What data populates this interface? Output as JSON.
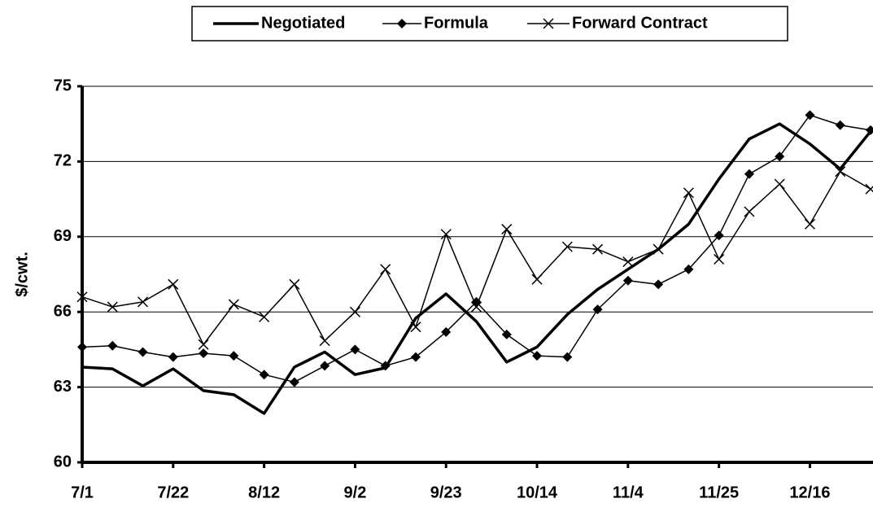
{
  "chart_data": {
    "type": "line",
    "y_label": "$/cwt.",
    "categories": [
      "7/1",
      null,
      null,
      "7/22",
      null,
      null,
      "8/12",
      null,
      null,
      "9/2",
      null,
      null,
      "9/23",
      null,
      null,
      "10/14",
      null,
      null,
      "11/4",
      null,
      null,
      "11/25",
      null,
      null,
      "12/16",
      null,
      null
    ],
    "ylim": [
      60,
      75
    ],
    "yticks": [
      60,
      63,
      66,
      69,
      72,
      75
    ],
    "grid": true,
    "legend": "top",
    "series": [
      {
        "name": "Negotiated",
        "color": "#000000",
        "marker": "none",
        "values": [
          63.8,
          63.73,
          63.05,
          63.73,
          62.86,
          62.7,
          61.95,
          63.8,
          64.4,
          63.5,
          63.77,
          65.75,
          66.72,
          65.62,
          64.0,
          64.6,
          65.9,
          66.9,
          67.7,
          68.5,
          69.5,
          71.3,
          72.9,
          73.5,
          72.7,
          71.7,
          73.2
        ]
      },
      {
        "name": "Formula",
        "color": "#000000",
        "marker": "diamond",
        "values": [
          64.6,
          64.65,
          64.4,
          64.2,
          64.35,
          64.25,
          63.5,
          63.2,
          63.85,
          64.5,
          63.85,
          64.2,
          65.2,
          66.4,
          65.1,
          64.25,
          64.2,
          66.1,
          67.25,
          67.1,
          67.7,
          69.05,
          71.5,
          72.2,
          73.85,
          73.45,
          73.25
        ]
      },
      {
        "name": "Forward Contract",
        "color": "#000000",
        "marker": "x",
        "values": [
          66.6,
          66.2,
          66.4,
          67.1,
          64.7,
          66.3,
          65.8,
          67.1,
          64.85,
          66.0,
          67.7,
          65.4,
          69.1,
          66.2,
          69.3,
          67.3,
          68.6,
          68.5,
          68.0,
          68.5,
          70.75,
          68.1,
          70.0,
          71.1,
          69.5,
          71.6,
          70.9
        ]
      }
    ]
  }
}
